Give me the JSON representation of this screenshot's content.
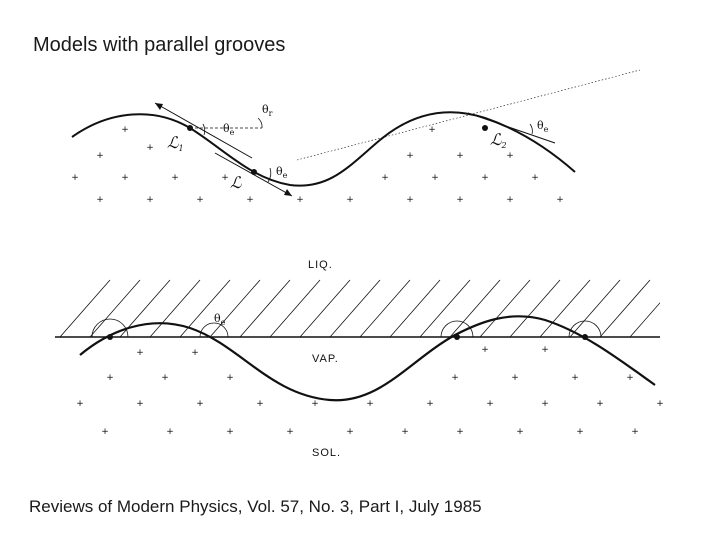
{
  "title": "Models with parallel grooves",
  "caption": "Reviews of Modern Physics, Vol. 57, No. 3, Part I, July 1985",
  "top_panel": {
    "theta_r": "θ",
    "theta_r_sub": "r",
    "theta_e": "θ",
    "theta_e_sub": "e",
    "line_l1": "ℒ",
    "line_l1_sub": "1",
    "line_l": "ℒ",
    "line_l2": "ℒ",
    "line_l2_sub": "2"
  },
  "bottom_panel": {
    "liquid_label": "LIQ.",
    "vapor_label": "VAP.",
    "solid_label": "SOL.",
    "theta_e": "θ",
    "theta_e_sub": "e"
  }
}
